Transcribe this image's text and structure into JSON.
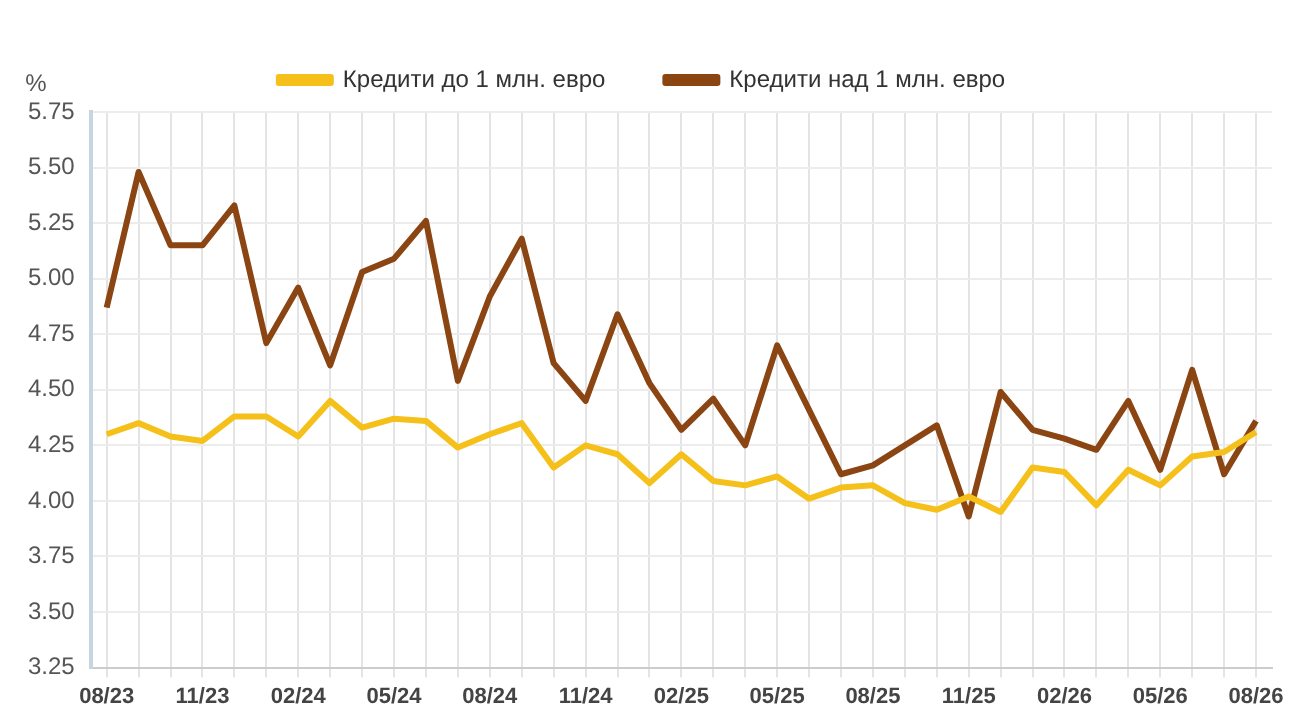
{
  "chart_data": {
    "type": "line",
    "ylabel": "%",
    "categories": [
      "08/23",
      null,
      null,
      "11/23",
      null,
      null,
      "02/24",
      null,
      null,
      "05/24",
      null,
      null,
      "08/24",
      null,
      null,
      "11/24",
      null,
      null,
      "02/25",
      null,
      null,
      "05/25",
      null,
      null,
      "08/25",
      null,
      null,
      "11/25",
      null,
      null,
      "02/26",
      null,
      null,
      "05/26",
      null,
      null,
      "08/26"
    ],
    "series": [
      {
        "name": "Кредити до 1 млн. евро",
        "color": "#f5c01a",
        "values": [
          4.3,
          4.35,
          4.29,
          4.27,
          4.38,
          4.38,
          4.29,
          4.45,
          4.33,
          4.37,
          4.36,
          4.24,
          4.3,
          4.35,
          4.15,
          4.25,
          4.21,
          4.08,
          4.21,
          4.09,
          4.07,
          4.11,
          4.01,
          4.06,
          4.07,
          3.99,
          3.96,
          4.02,
          3.95,
          4.15,
          4.13,
          3.98,
          4.14,
          4.07,
          4.2,
          4.22,
          4.31
        ]
      },
      {
        "name": "Кредити над 1 млн. евро",
        "color": "#8b4513",
        "values": [
          4.87,
          5.48,
          5.15,
          5.15,
          5.33,
          4.71,
          4.96,
          4.61,
          5.03,
          5.09,
          5.26,
          4.54,
          4.92,
          5.18,
          4.62,
          4.45,
          4.84,
          4.53,
          4.32,
          4.46,
          4.25,
          4.7,
          4.41,
          4.12,
          4.16,
          4.25,
          4.34,
          3.93,
          4.49,
          4.32,
          4.28,
          4.23,
          4.45,
          4.14,
          4.59,
          4.12,
          4.36
        ]
      }
    ],
    "ylim": [
      3.25,
      5.75
    ],
    "yticks": [
      {
        "value": 3.25,
        "label": "3.25"
      },
      {
        "value": 3.5,
        "label": "3.50"
      },
      {
        "value": 3.75,
        "label": "3.75"
      },
      {
        "value": 4,
        "label": "4.00"
      },
      {
        "value": 4.25,
        "label": "4.25"
      },
      {
        "value": 4.5,
        "label": "4.50"
      },
      {
        "value": 4.75,
        "label": "4.75"
      },
      {
        "value": 5,
        "label": "5.00"
      },
      {
        "value": 5.25,
        "label": "5.25"
      },
      {
        "value": 5.5,
        "label": "5.50"
      },
      {
        "value": 5.75,
        "label": "5.75"
      }
    ],
    "grid": true,
    "legend": "top",
    "marker": "none",
    "line_style": "solid"
  }
}
